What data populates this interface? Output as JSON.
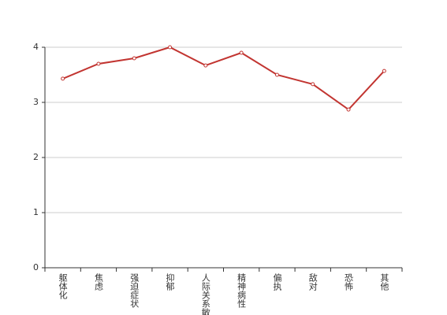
{
  "chart_data": {
    "type": "line",
    "categories": [
      "躯体化",
      "焦虑",
      "强迫症状",
      "抑郁",
      "人际关系敏感",
      "精神病性",
      "偏执",
      "敌对",
      "恐怖",
      "其他"
    ],
    "series": [
      {
        "color": "#c23531",
        "values": [
          3.43,
          3.7,
          3.8,
          4.0,
          3.67,
          3.9,
          3.5,
          3.33,
          2.87,
          3.57
        ]
      }
    ],
    "ylim": [
      0,
      4
    ],
    "yticks": [
      0,
      1,
      2,
      3,
      4
    ],
    "grid": true
  }
}
